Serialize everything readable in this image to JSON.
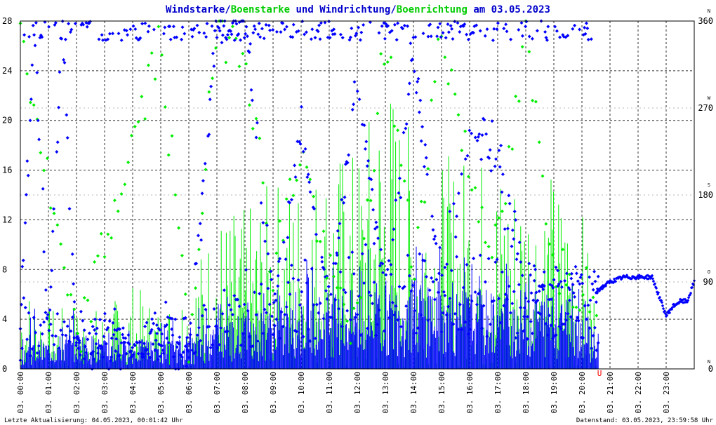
{
  "title": {
    "parts": [
      {
        "text": "Windstarke",
        "color": "#0000cc"
      },
      {
        "text": "/",
        "color": "#0000cc"
      },
      {
        "text": "Boenstarke",
        "color": "#00cc00"
      },
      {
        "text": " und ",
        "color": "#0000cc"
      },
      {
        "text": "Windrichtung",
        "color": "#0000cc"
      },
      {
        "text": "/",
        "color": "#0000cc"
      },
      {
        "text": "Boenrichtung",
        "color": "#00cc00"
      },
      {
        "text": " am 03.05.2023",
        "color": "#0000cc"
      }
    ]
  },
  "footer": {
    "left": "Letzte Aktualisierung: 04.05.2023, 00:01:42 Uhr",
    "right": "Datenstand: 03.05.2023, 23:59:58 Uhr"
  },
  "colors": {
    "wind": "#0000ff",
    "gust": "#00ee00",
    "grid": "#000000",
    "marker": "#ff0000"
  },
  "chart_data": {
    "type": "line",
    "xlabel": "",
    "ylabel": "",
    "x_range_hours": [
      0,
      24
    ],
    "x_ticks": [
      "03. 00:00",
      "03. 01:00",
      "03. 02:00",
      "03. 03:00",
      "03. 04:00",
      "03. 05:00",
      "03. 06:00",
      "03. 07:00",
      "03. 08:00",
      "03. 09:00",
      "03. 10:00",
      "03. 11:00",
      "03. 12:00",
      "03. 13:00",
      "03. 14:00",
      "03. 15:00",
      "03. 16:00",
      "03. 17:00",
      "03. 18:00",
      "03. 19:00",
      "03. 20:00",
      "03. 21:00",
      "03. 22:00",
      "03. 23:00"
    ],
    "y_left": {
      "range": [
        0,
        28
      ],
      "ticks": [
        "0",
        "4",
        "8",
        "12",
        "16",
        "20",
        "24",
        "28"
      ]
    },
    "y_right": {
      "range": [
        0,
        360
      ],
      "ticks": [
        "0",
        "90",
        "180",
        "270",
        "360"
      ],
      "compass": [
        "N",
        "O",
        "S",
        "W",
        "N"
      ]
    },
    "marker_label": {
      "text": "U",
      "hour": 20.62
    },
    "series": [
      {
        "name": "Windstarke",
        "axis": "left",
        "style": "bars",
        "hours": [
          0,
          1,
          2,
          3,
          4,
          5,
          6,
          7,
          8,
          9,
          10,
          11,
          12,
          13,
          14,
          15,
          16,
          17,
          18,
          19,
          20,
          20.5
        ],
        "typical": [
          1.5,
          1.5,
          2,
          1.5,
          1.5,
          1.5,
          1.5,
          2.5,
          3,
          3,
          3.5,
          4,
          4,
          4.5,
          4.5,
          4.5,
          4,
          4,
          4,
          4,
          3.5,
          2
        ],
        "peak": [
          6,
          4.5,
          5,
          4,
          3.5,
          4,
          4.5,
          6,
          8,
          8,
          9,
          9,
          10,
          10,
          10,
          10,
          9.5,
          9,
          9,
          8.5,
          7,
          5
        ]
      },
      {
        "name": "Boenstarke",
        "axis": "left",
        "style": "bars",
        "hours": [
          0,
          1,
          2,
          3,
          4,
          5,
          6,
          7,
          8,
          9,
          10,
          11,
          12,
          13,
          14,
          15,
          16,
          17,
          18,
          19,
          20,
          20.5
        ],
        "peak": [
          7.5,
          5,
          5,
          5,
          7,
          5,
          7.5,
          13,
          13,
          15.5,
          16,
          18,
          18,
          25.5,
          19,
          17,
          18,
          17.5,
          17,
          16,
          13,
          6
        ]
      },
      {
        "name": "Windrichtung",
        "axis": "right",
        "style": "dots",
        "note": "scattered direction readings, mostly N and NNE / NW sectors",
        "hours": [
          0,
          0.5,
          1,
          1.5,
          2,
          3,
          4,
          5,
          6,
          7,
          8,
          9,
          10,
          11,
          12,
          13,
          14,
          15,
          16,
          17,
          18,
          19,
          19.5,
          20,
          20.5,
          21,
          21.5,
          22,
          22.5,
          23,
          23.25,
          23.5,
          23.75,
          24
        ],
        "values": [
          40,
          350,
          30,
          355,
          20,
          30,
          20,
          30,
          25,
          345,
          355,
          60,
          250,
          60,
          300,
          70,
          330,
          80,
          240,
          220,
          60,
          80,
          95,
          85,
          80,
          90,
          95,
          95,
          95,
          55,
          65,
          70,
          70,
          90
        ]
      },
      {
        "name": "Boenrichtung",
        "axis": "right",
        "style": "dots",
        "hours": [
          0,
          2,
          5,
          6,
          7,
          8,
          9,
          10,
          11,
          12,
          13,
          14,
          15,
          16,
          17,
          18,
          19,
          20
        ],
        "values": [
          355,
          20,
          340,
          20,
          350,
          340,
          100,
          230,
          90,
          40,
          350,
          100,
          355,
          200,
          120,
          340,
          110,
          85
        ]
      }
    ]
  }
}
